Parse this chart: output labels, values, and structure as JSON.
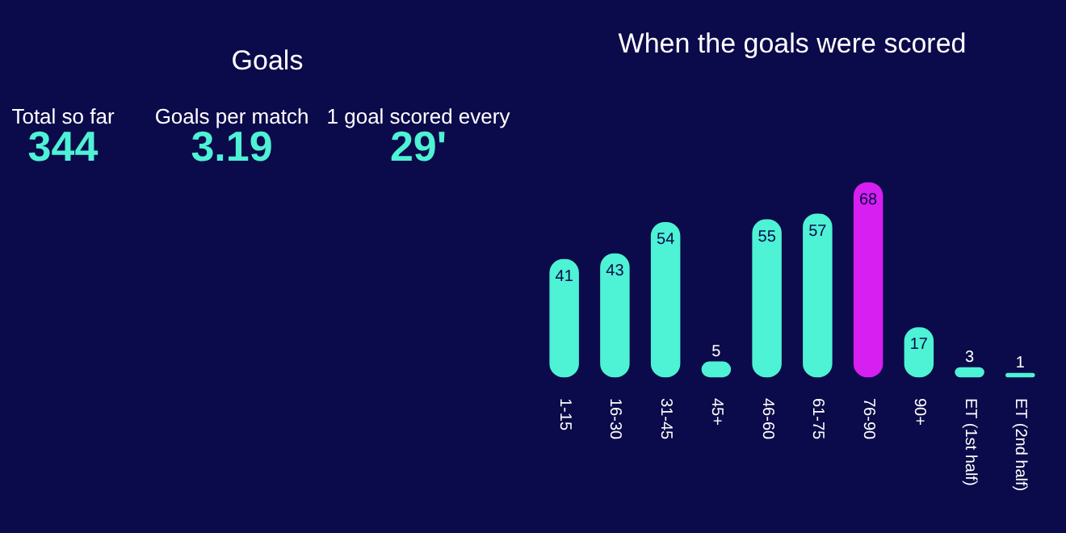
{
  "chart_data": [
    {
      "type": "other",
      "title": "Goals",
      "annotations": [
        "Total so far",
        "344",
        "Goals per match",
        "3.19",
        "1 goal scored every",
        "29'"
      ]
    },
    {
      "type": "bar",
      "title": "When the goals were scored",
      "categories": [
        "1-15",
        "16-30",
        "31-45",
        "45+",
        "46-60",
        "61-75",
        "76-90",
        "90+",
        "ET (1st half)",
        "ET (2nd half)"
      ],
      "values": [
        41,
        43,
        54,
        5,
        55,
        57,
        68,
        17,
        3,
        1
      ],
      "colors": [
        "#4ef2d4",
        "#4ef2d4",
        "#4ef2d4",
        "#4ef2d4",
        "#4ef2d4",
        "#4ef2d4",
        "#d61ff0",
        "#4ef2d4",
        "#4ef2d4",
        "#4ef2d4"
      ],
      "data_labels": true,
      "grid": false
    }
  ]
}
